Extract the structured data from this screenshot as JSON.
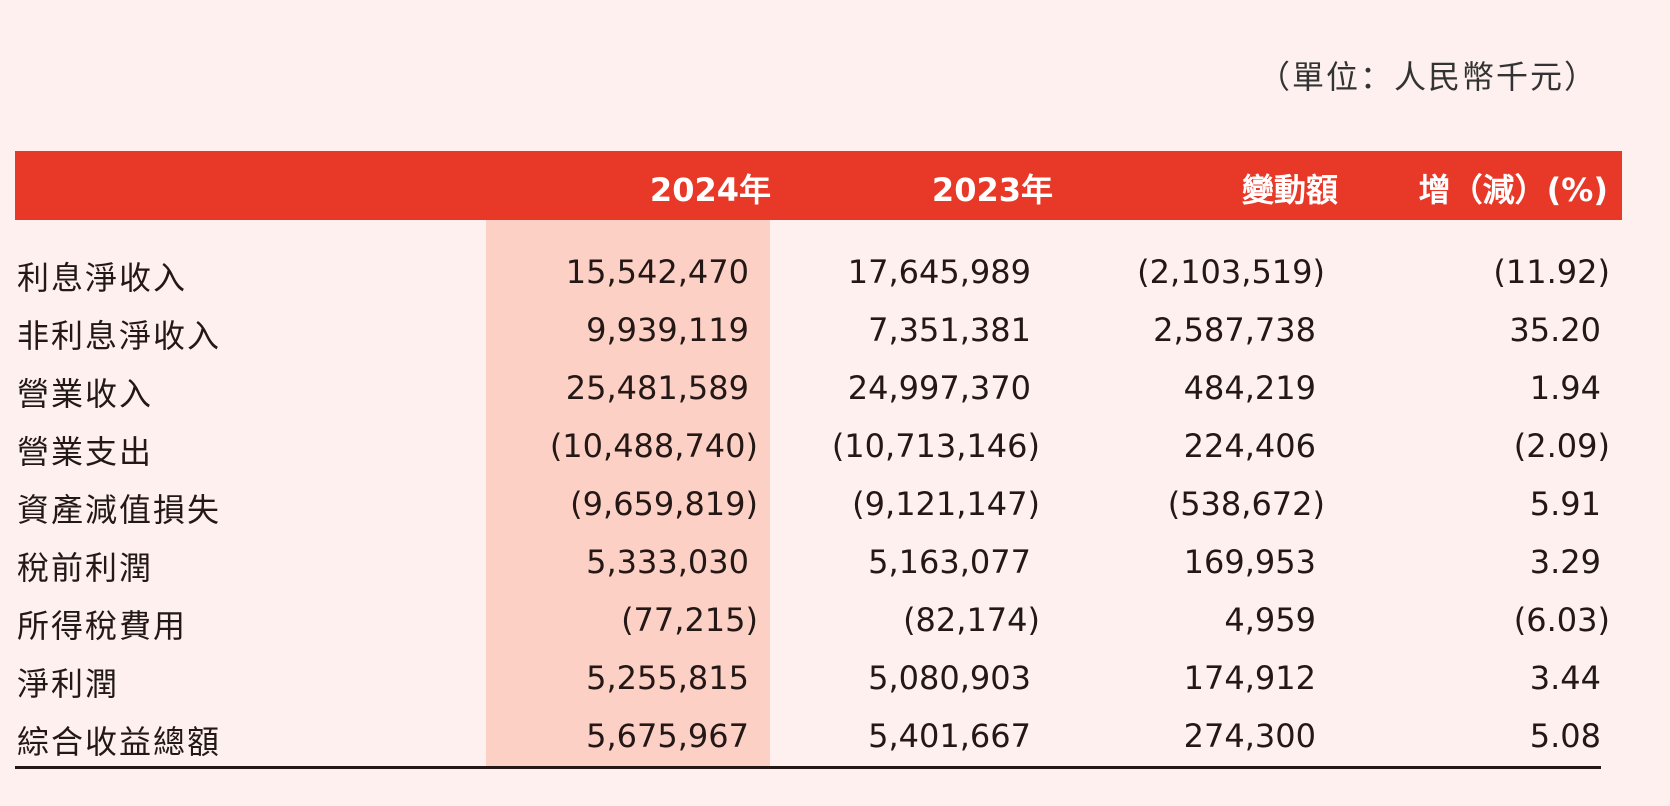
{
  "unit_note": "（單位：人民幣千元）",
  "header": {
    "col1": "2024年",
    "col2": "2023年",
    "col3": "變動額",
    "col4": "增（減）(%)"
  },
  "colors": {
    "header_bg": "#e83828",
    "highlight": "#fdd0c6",
    "page_bg": "#fdf0ee"
  },
  "rows": [
    {
      "label": "利息淨收入",
      "v2024": "15,542,470",
      "v2023": "17,645,989",
      "change": "(2,103,519)",
      "pct": "(11.92)"
    },
    {
      "label": "非利息淨收入",
      "v2024": "9,939,119",
      "v2023": "7,351,381",
      "change": "2,587,738",
      "pct": "35.20"
    },
    {
      "label": "營業收入",
      "v2024": "25,481,589",
      "v2023": "24,997,370",
      "change": "484,219",
      "pct": "1.94"
    },
    {
      "label": "營業支出",
      "v2024": "(10,488,740)",
      "v2023": "(10,713,146)",
      "change": "224,406",
      "pct": "(2.09)"
    },
    {
      "label": "資產減值損失",
      "v2024": "(9,659,819)",
      "v2023": "(9,121,147)",
      "change": "(538,672)",
      "pct": "5.91"
    },
    {
      "label": "稅前利潤",
      "v2024": "5,333,030",
      "v2023": "5,163,077",
      "change": "169,953",
      "pct": "3.29"
    },
    {
      "label": "所得稅費用",
      "v2024": "(77,215)",
      "v2023": "(82,174)",
      "change": "4,959",
      "pct": "(6.03)"
    },
    {
      "label": "淨利潤",
      "v2024": "5,255,815",
      "v2023": "5,080,903",
      "change": "174,912",
      "pct": "3.44"
    },
    {
      "label": "綜合收益總額",
      "v2024": "5,675,967",
      "v2023": "5,401,667",
      "change": "274,300",
      "pct": "5.08"
    }
  ]
}
